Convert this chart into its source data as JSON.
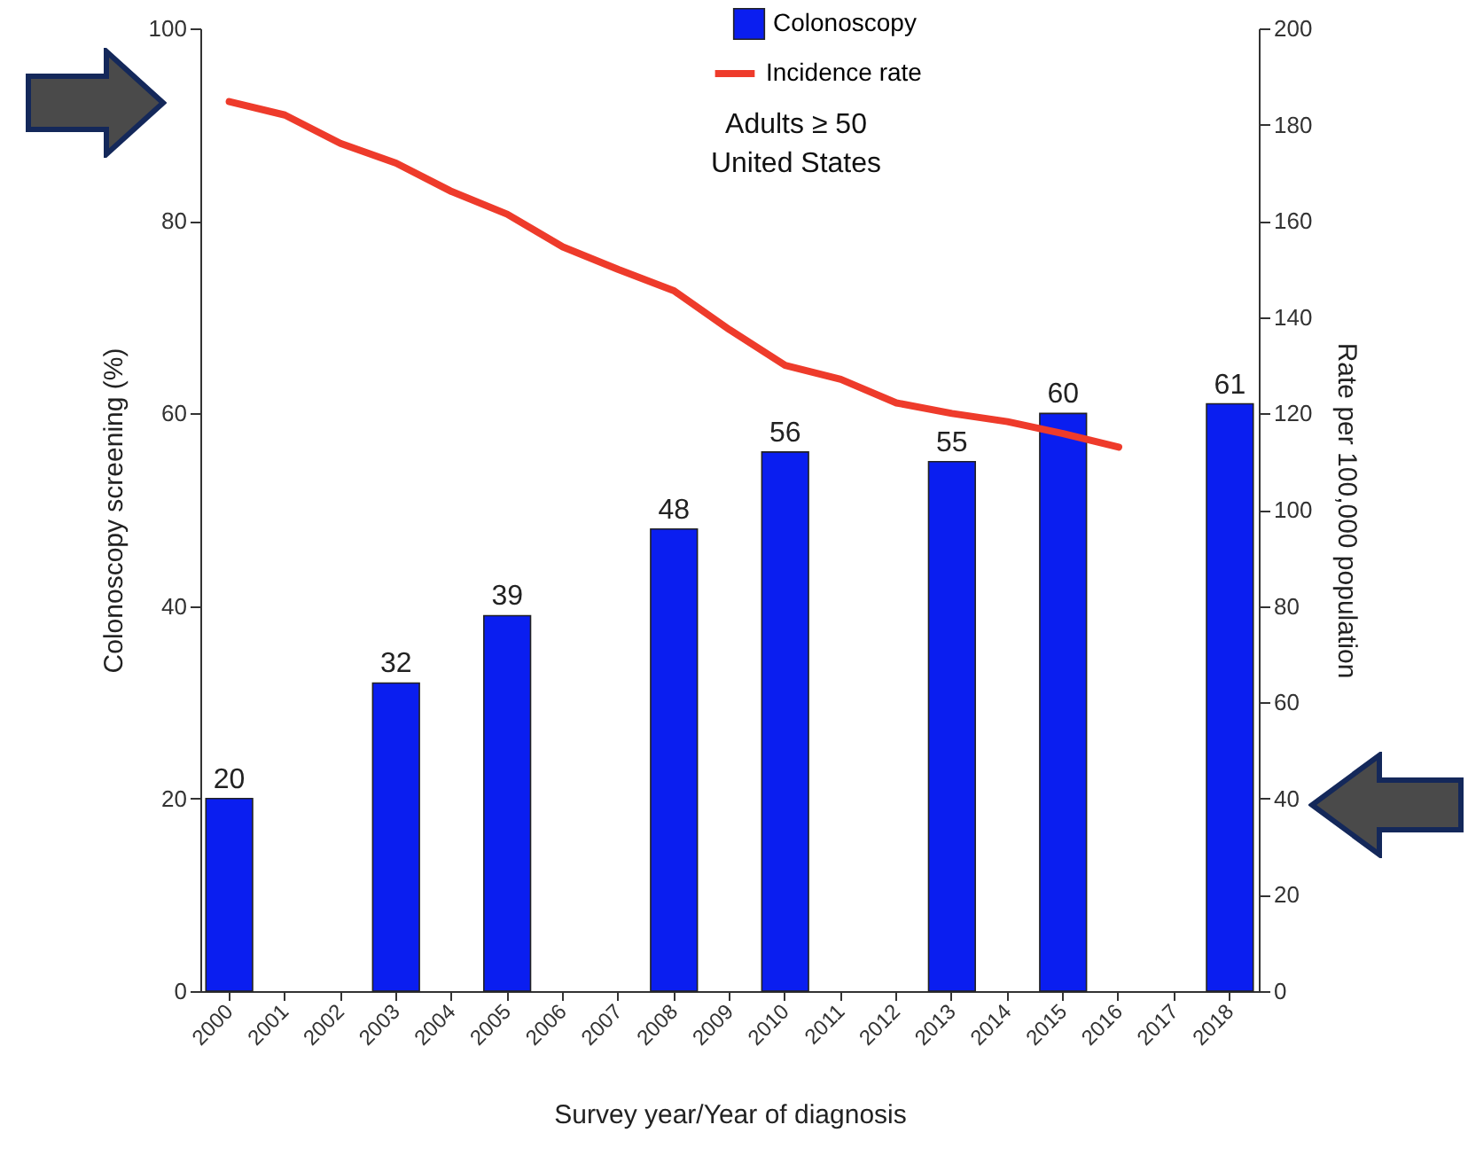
{
  "chart_data": {
    "type": "bar",
    "xlabel": "Survey year/Year of diagnosis",
    "ylabel": "Colonoscopy screening (%)",
    "y2label": "Rate per 100,000 population",
    "categories": [
      "2000",
      "2001",
      "2002",
      "2003",
      "2004",
      "2005",
      "2006",
      "2007",
      "2008",
      "2009",
      "2010",
      "2011",
      "2012",
      "2013",
      "2014",
      "2015",
      "2016",
      "2017",
      "2018"
    ],
    "series": [
      {
        "name": "Colonoscopy",
        "color": "#0a1ef0",
        "values": [
          20,
          null,
          null,
          32,
          null,
          39,
          null,
          null,
          48,
          null,
          56,
          null,
          null,
          55,
          null,
          60,
          null,
          null,
          61
        ],
        "value_labels": [
          "20",
          null,
          null,
          "32",
          null,
          "39",
          null,
          null,
          "48",
          null,
          "56",
          null,
          null,
          "55",
          null,
          "60",
          null,
          null,
          "61"
        ]
      },
      {
        "name": "Incidence rate",
        "type": "line",
        "axis": "y2",
        "color": "#ee3b2b",
        "values": [
          184.8,
          182,
          176.1,
          172,
          166.1,
          161.4,
          154.6,
          149.9,
          145.5,
          137.4,
          130,
          127.1,
          122.2,
          120,
          118.3,
          115.8,
          113,
          null,
          null
        ]
      }
    ],
    "ylim": [
      0,
      100
    ],
    "yticks": [
      0,
      20,
      40,
      60,
      80,
      100
    ],
    "y2lim": [
      0,
      200
    ],
    "y2ticks": [
      0,
      20,
      40,
      60,
      80,
      100,
      120,
      140,
      160,
      180,
      200
    ],
    "annotations": [
      "Adults ≥ 50\nUnited States"
    ],
    "legend": "top",
    "grid": false
  }
}
